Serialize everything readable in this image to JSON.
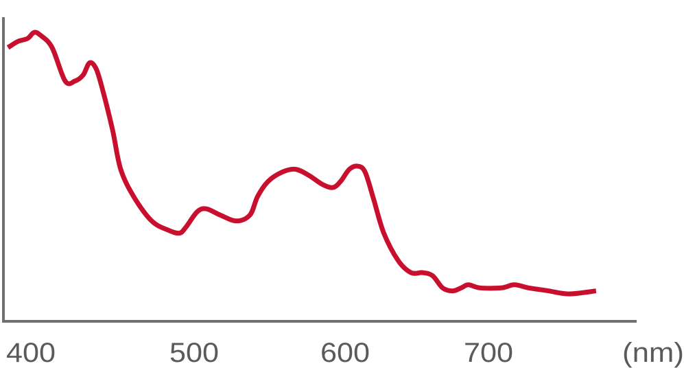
{
  "chart_data": {
    "type": "line",
    "title": "",
    "xlabel": "",
    "ylabel": "",
    "x_unit_label": "(nm)",
    "x_ticks": [
      400,
      500,
      600,
      700
    ],
    "x_tick_labels": [
      "400",
      "500",
      "600",
      "700"
    ],
    "xlim": [
      386,
      775
    ],
    "ylim": [
      0,
      100
    ],
    "y_scale_note_visible": false,
    "grid": false,
    "legend": "none",
    "line_color": "#c8102e",
    "axis_color": "#707070",
    "series": [
      {
        "x": [
          386,
          392,
          398,
          402,
          406,
          413,
          421,
          427,
          432,
          436,
          440,
          444,
          450,
          455,
          463,
          474,
          484,
          491,
          495,
          502,
          508,
          517,
          528,
          537,
          542,
          549,
          558,
          567,
          576,
          585,
          592,
          597,
          603,
          609,
          614,
          620,
          627,
          637,
          646,
          654,
          661,
          668,
          675,
          681,
          686,
          694,
          709,
          718,
          728,
          742,
          756,
          775
        ],
        "y": [
          90,
          92,
          93,
          95,
          94,
          90,
          79,
          79,
          81,
          85,
          83,
          76,
          63,
          50,
          41,
          33,
          30,
          29,
          31,
          36,
          37,
          35,
          33,
          35,
          41,
          46,
          49,
          50,
          48,
          45,
          44,
          46,
          50,
          51,
          49,
          40,
          29,
          20,
          16,
          16,
          15,
          11,
          10,
          11,
          12,
          11,
          11,
          12,
          11,
          10,
          9,
          10
        ]
      }
    ]
  }
}
